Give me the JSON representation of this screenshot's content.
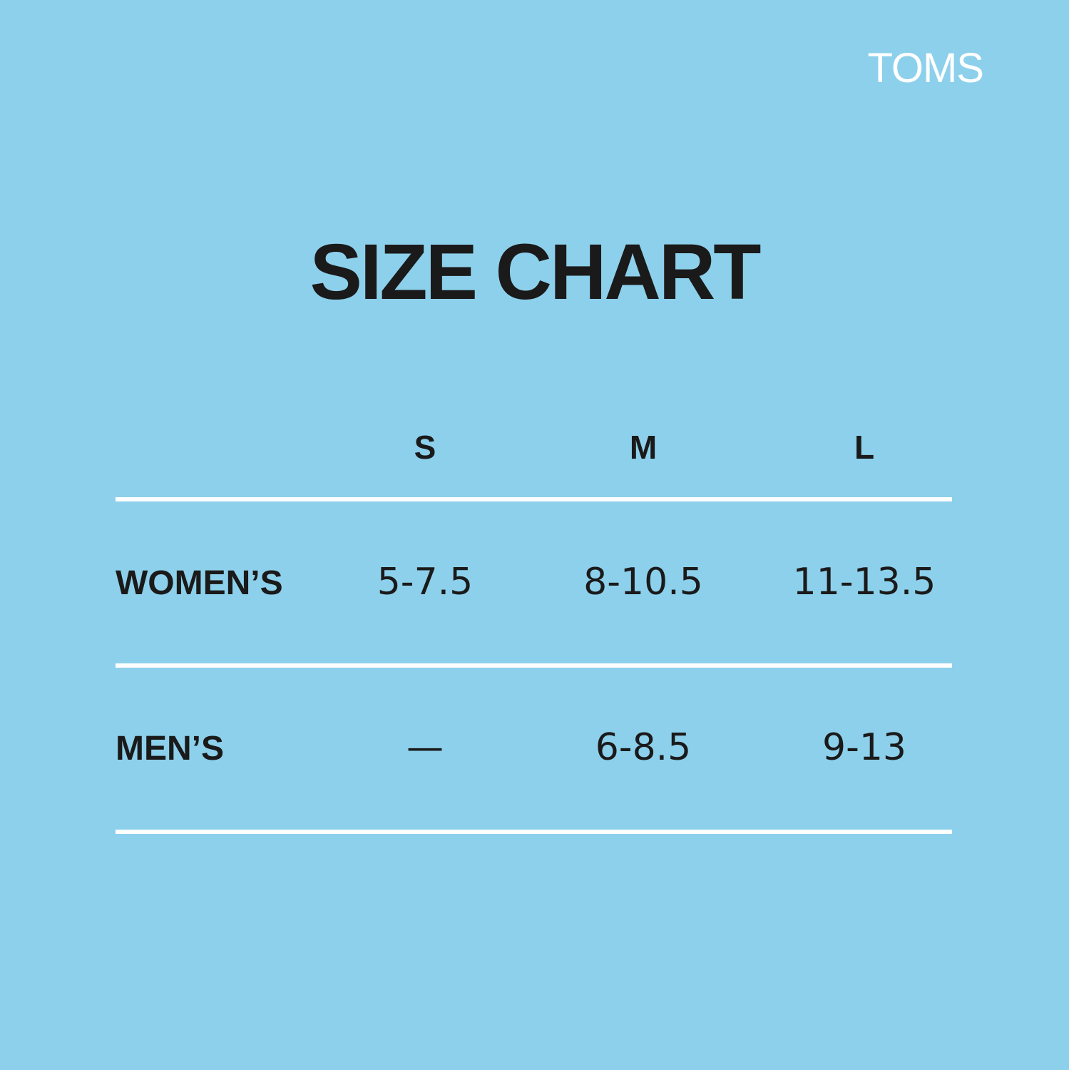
{
  "brand": "TOMS",
  "title": "SIZE CHART",
  "table": {
    "columns": [
      "S",
      "M",
      "L"
    ],
    "rows": [
      {
        "label": "WOMEN’S",
        "cells": [
          "5-7.5",
          "8-10.5",
          "11-13.5"
        ]
      },
      {
        "label": "MEN’S",
        "cells": [
          "—",
          "6-8.5",
          "9-13"
        ]
      }
    ]
  }
}
